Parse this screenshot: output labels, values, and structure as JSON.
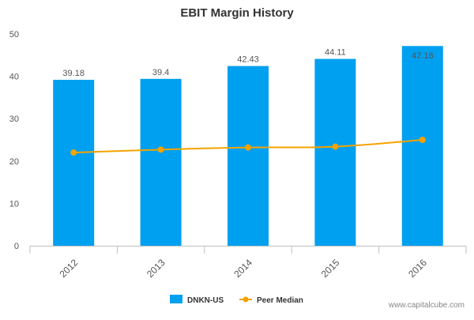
{
  "chart_data": {
    "type": "bar",
    "title": "EBIT Margin History",
    "categories": [
      "2012",
      "2013",
      "2014",
      "2015",
      "2016"
    ],
    "series": [
      {
        "name": "DNKN-US",
        "type": "bar",
        "values": [
          39.18,
          39.4,
          42.43,
          44.11,
          47.16
        ],
        "value_labels": [
          "39.18",
          "39.4",
          "42.43",
          "44.11",
          "47.16"
        ],
        "color": "#00a0f0"
      },
      {
        "name": "Peer Median",
        "type": "line",
        "values": [
          22.0,
          22.7,
          23.2,
          23.4,
          25.0
        ],
        "color": "#f4a300"
      }
    ],
    "xlabel": "",
    "ylabel": "",
    "ylim": [
      0,
      50
    ],
    "yticks": [
      "0",
      "10",
      "20",
      "30",
      "40",
      "50"
    ],
    "grid": false,
    "legend_position": "bottom-center"
  },
  "watermark": "www.capitalcube.com",
  "colors": {
    "axis": "#c0c0c0",
    "tick_text": "#555555",
    "label_text": "#555555"
  }
}
